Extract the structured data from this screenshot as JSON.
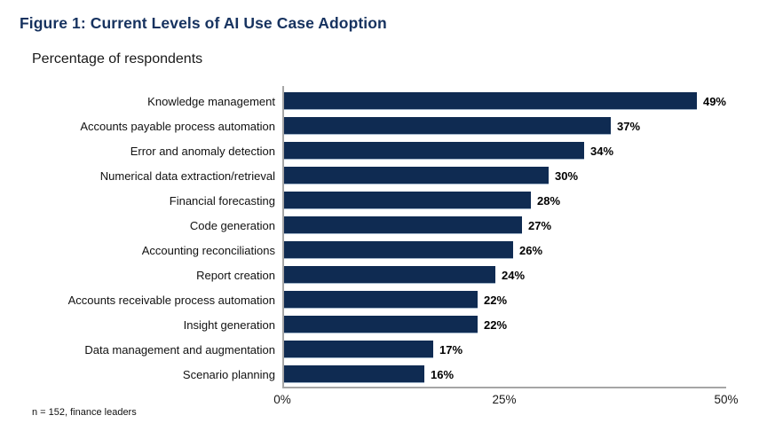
{
  "figure": {
    "title": "Figure 1: Current Levels of AI Use Case Adoption",
    "subtitle": "Percentage of respondents",
    "footnote": "n = 152, finance leaders"
  },
  "colors": {
    "bar": "#0f2b52",
    "title_text": "#16325f",
    "axis_line": "#a6a6a6"
  },
  "chart_data": {
    "type": "bar",
    "orientation": "horizontal",
    "title": "Figure 1: Current Levels of AI Use Case Adoption",
    "subtitle": "Percentage of respondents",
    "categories": [
      "Knowledge management",
      "Accounts payable process automation",
      "Error and anomaly detection",
      "Numerical data extraction/retrieval",
      "Financial forecasting",
      "Code generation",
      "Accounting reconciliations",
      "Report creation",
      "Accounts receivable process automation",
      "Insight generation",
      "Data management and augmentation",
      "Scenario planning"
    ],
    "values": [
      49,
      37,
      34,
      30,
      28,
      27,
      26,
      24,
      22,
      22,
      17,
      16
    ],
    "value_labels": [
      "49%",
      "37%",
      "34%",
      "30%",
      "28%",
      "27%",
      "26%",
      "24%",
      "22%",
      "22%",
      "17%",
      "16%"
    ],
    "xlabel": "",
    "ylabel": "",
    "xlim": [
      0,
      50
    ],
    "x_ticks": [
      0,
      25,
      50
    ],
    "x_tick_labels": [
      "0%",
      "25%",
      "50%"
    ],
    "grid": false,
    "legend": false,
    "footnote": "n = 152, finance leaders"
  }
}
